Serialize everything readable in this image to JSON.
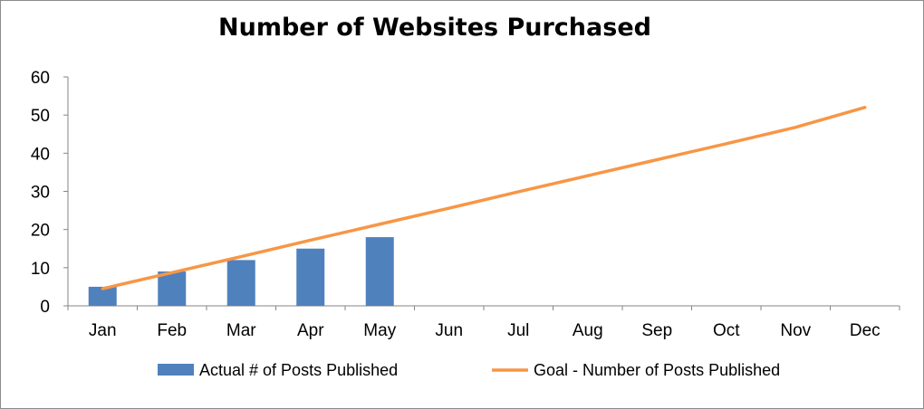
{
  "chart_data": {
    "type": "bar",
    "title": "Number of Websites Purchased",
    "categories": [
      "Jan",
      "Feb",
      "Mar",
      "Apr",
      "May",
      "Jun",
      "Jul",
      "Aug",
      "Sep",
      "Oct",
      "Nov",
      "Dec"
    ],
    "ylim": [
      0,
      60
    ],
    "yticks": [
      0,
      10,
      20,
      30,
      40,
      50,
      60
    ],
    "grid": false,
    "legend_position": "bottom",
    "series": [
      {
        "name": "Actual # of Posts Published",
        "type": "bar",
        "color": "#4f81bd",
        "values": [
          5,
          9,
          12,
          15,
          18,
          null,
          null,
          null,
          null,
          null,
          null,
          null
        ]
      },
      {
        "name": "Goal - Number of Posts Published",
        "type": "line",
        "color": "#f79646",
        "values": [
          4.5,
          8.7,
          12.9,
          17.2,
          21.4,
          25.6,
          29.9,
          34.1,
          38.3,
          42.5,
          46.8,
          52
        ]
      }
    ]
  }
}
